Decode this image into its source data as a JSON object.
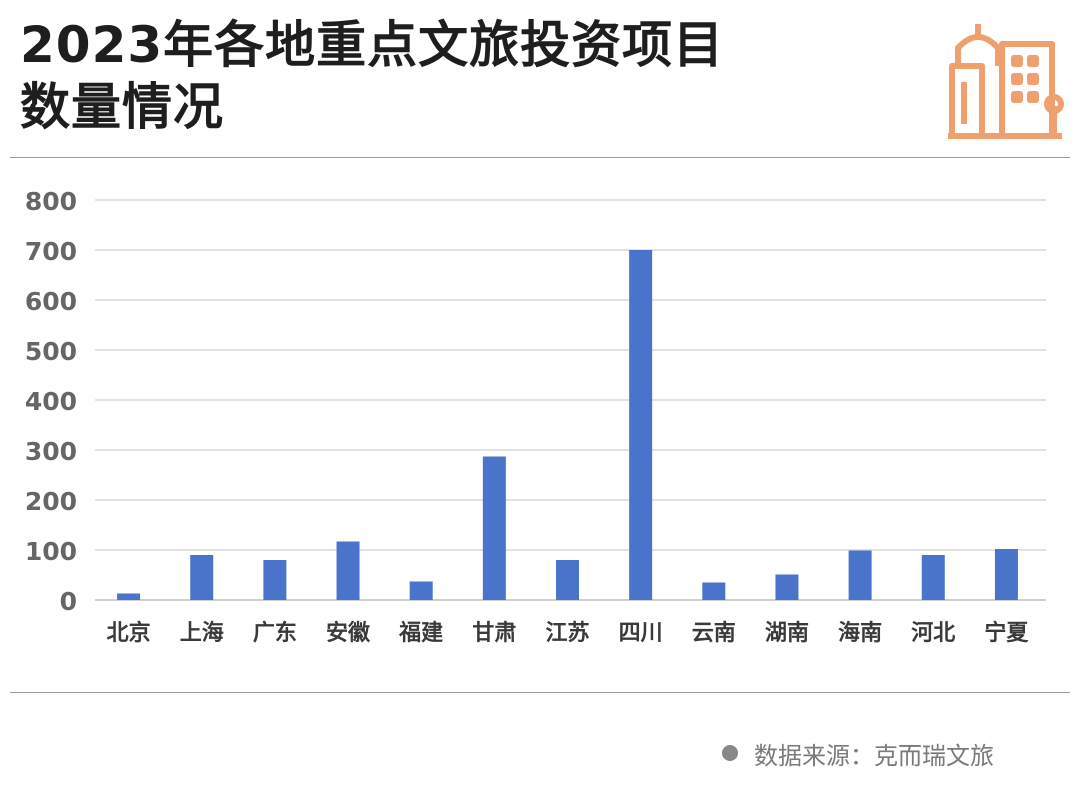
{
  "title": {
    "line1": "2023年各地重点文旅投资项目",
    "line2": "数量情况"
  },
  "logo": {
    "icon": "city-buildings-icon",
    "color": "#f0a06e"
  },
  "source": {
    "text": "数据来源：克而瑞文旅",
    "icon": "bullet-dot-icon"
  },
  "chart_data": {
    "type": "bar",
    "title": "2023年各地重点文旅投资项目数量情况",
    "categories": [
      "北京",
      "上海",
      "广东",
      "安徽",
      "福建",
      "甘肃",
      "江苏",
      "四川",
      "云南",
      "湖南",
      "海南",
      "河北",
      "宁夏"
    ],
    "values": [
      13,
      90,
      80,
      117,
      37,
      287,
      80,
      700,
      35,
      51,
      99,
      90,
      102
    ],
    "ylim": [
      0,
      800
    ],
    "yticks": [
      0,
      100,
      200,
      300,
      400,
      500,
      600,
      700,
      800
    ],
    "grid": true,
    "bar_color": "#4a74c9",
    "grid_color": "#d9d9d9"
  }
}
